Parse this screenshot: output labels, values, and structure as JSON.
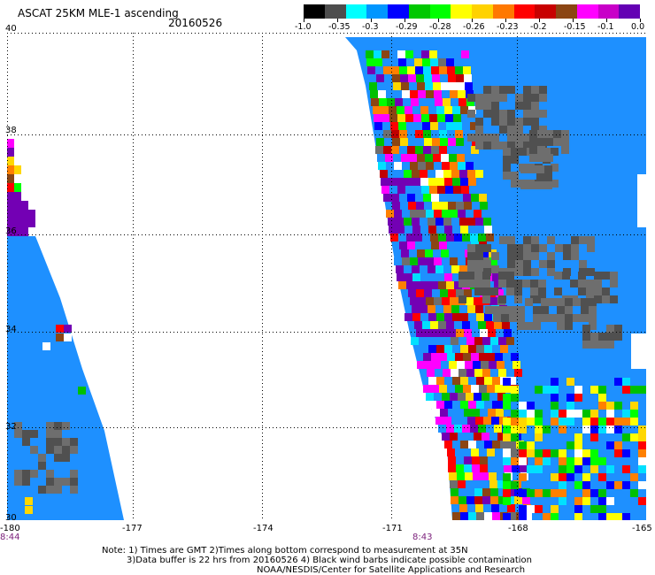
{
  "header": {
    "title": "ASCAT 25KM MLE-1 ascending",
    "date": "20160526"
  },
  "colorbar": {
    "colors": [
      "#000000",
      "#4d4d4d",
      "#00ffff",
      "#0096ff",
      "#0000ff",
      "#00c800",
      "#00ff00",
      "#ffff00",
      "#ffd200",
      "#ff7800",
      "#ff0000",
      "#c80000",
      "#8b4513",
      "#ff00ff",
      "#c800c8",
      "#6400b4"
    ],
    "labels": [
      "-1.0",
      "-0.35",
      "-0.3",
      "-0.29",
      "-0.28",
      "-0.26",
      "-0.23",
      "-0.2",
      "-0.15",
      "-0.1",
      "0.0"
    ]
  },
  "axes": {
    "lat_labels": [
      "40",
      "38",
      "36",
      "34",
      "32",
      "30"
    ],
    "lon_labels": [
      "-180",
      "-177",
      "-174",
      "-171",
      "-168",
      "-165"
    ],
    "lat_range": [
      30,
      40
    ],
    "lon_range": [
      -180,
      -165
    ],
    "grid": "dotted"
  },
  "swaths": {
    "time_labels": [
      "8:44",
      "8:43"
    ],
    "background_value": "ocean-blue",
    "palette": {
      "blue": "#1e90ff",
      "gray_dark": "#505050",
      "gray": "#6e6e6e",
      "purple": "#7300b4",
      "magenta": "#ff00ff",
      "red": "#ff0000",
      "darkred": "#c00000",
      "orange": "#ff8000",
      "yellow": "#ffd700",
      "brightyellow": "#ffff00",
      "green": "#00c000",
      "lime": "#00ff00",
      "navy": "#0000ff",
      "brown": "#8b4513",
      "cyan": "#00e0ff",
      "white": "#ffffff"
    }
  },
  "footer": {
    "note1": "Note: 1) Times are GMT 2)Times along bottom correspond to measurement at 35N",
    "note2": "3)Data buffer is 22 hrs from 20160526 4) Black wind barbs indicate possible contamination",
    "note3": "NOAA/NESDIS/Center for Satellite Applications and Research"
  }
}
